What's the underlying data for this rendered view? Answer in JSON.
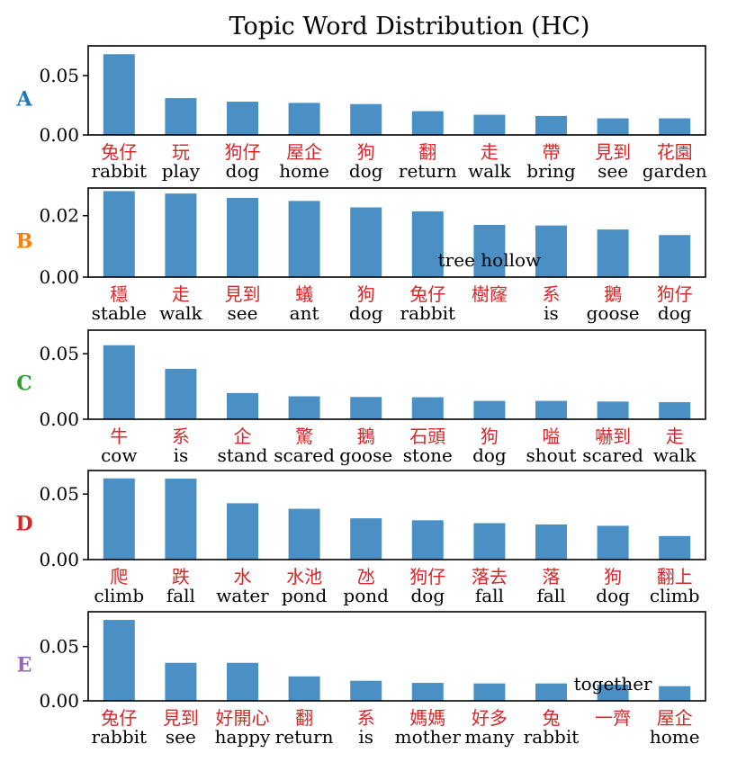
{
  "chart_data": {
    "type": "bar",
    "title": "Topic Word Distribution (HC)",
    "bar_color": "#4a90c4",
    "label_color": "#d62728",
    "panels": [
      {
        "label": "A",
        "label_color": "#1f77b4",
        "ylim": [
          0,
          0.075
        ],
        "yticks": [
          0.0,
          0.05
        ],
        "ytick_labels": [
          "0.00",
          "0.05"
        ],
        "words_zh": [
          "兔仔",
          "玩",
          "狗仔",
          "屋企",
          "狗",
          "翻",
          "走",
          "帶",
          "見到",
          "花園"
        ],
        "words_en": [
          "rabbit",
          "play",
          "dog",
          "home",
          "dog",
          "return",
          "walk",
          "bring",
          "see",
          "garden"
        ],
        "values": [
          0.068,
          0.031,
          0.028,
          0.027,
          0.026,
          0.02,
          0.017,
          0.016,
          0.014,
          0.014
        ],
        "annotation": ""
      },
      {
        "label": "B",
        "label_color": "#ff7f0e",
        "ylim": [
          0,
          0.029
        ],
        "yticks": [
          0.0,
          0.02
        ],
        "ytick_labels": [
          "0.00",
          "0.02"
        ],
        "words_zh": [
          "穩",
          "走",
          "見到",
          "蟻",
          "狗",
          "兔仔",
          "樹窿",
          "系",
          "鵝",
          "狗仔"
        ],
        "words_en": [
          "stable",
          "walk",
          "see",
          "ant",
          "dog",
          "rabbit",
          "",
          "is",
          "goose",
          "dog"
        ],
        "values": [
          0.028,
          0.0272,
          0.0258,
          0.0248,
          0.0227,
          0.0214,
          0.017,
          0.0168,
          0.0155,
          0.0137
        ],
        "annotation": "tree hollow"
      },
      {
        "label": "C",
        "label_color": "#2ca02c",
        "ylim": [
          0,
          0.068
        ],
        "yticks": [
          0.0,
          0.05
        ],
        "ytick_labels": [
          "0.00",
          "0.05"
        ],
        "words_zh": [
          "牛",
          "系",
          "企",
          "驚",
          "鵝",
          "石頭",
          "狗",
          "嗌",
          "嚇到",
          "走"
        ],
        "words_en": [
          "cow",
          "is",
          "stand",
          "scared",
          "goose",
          "stone",
          "dog",
          "shout",
          "scared",
          "walk"
        ],
        "values": [
          0.0565,
          0.0385,
          0.02,
          0.0175,
          0.017,
          0.0168,
          0.014,
          0.014,
          0.0135,
          0.013
        ],
        "annotation": ""
      },
      {
        "label": "D",
        "label_color": "#d62728",
        "ylim": [
          0,
          0.068
        ],
        "yticks": [
          0.0,
          0.05
        ],
        "ytick_labels": [
          "0.00",
          "0.05"
        ],
        "words_zh": [
          "爬",
          "跌",
          "水",
          "水池",
          "氹",
          "狗仔",
          "落去",
          "落",
          "狗",
          "翻上"
        ],
        "words_en": [
          "climb",
          "fall",
          "water",
          "pond",
          "pond",
          "dog",
          "fall",
          "fall",
          "dog",
          "climb"
        ],
        "values": [
          0.062,
          0.0618,
          0.043,
          0.0388,
          0.0315,
          0.03,
          0.0278,
          0.0268,
          0.0258,
          0.018
        ],
        "annotation": ""
      },
      {
        "label": "E",
        "label_color": "#9467bd",
        "ylim": [
          0,
          0.082
        ],
        "yticks": [
          0.0,
          0.05
        ],
        "ytick_labels": [
          "0.00",
          "0.05"
        ],
        "words_zh": [
          "兔仔",
          "見到",
          "好開心",
          "翻",
          "系",
          "媽媽",
          "好多",
          "兔",
          "一齊",
          "屋企"
        ],
        "words_en": [
          "rabbit",
          "see",
          "happy",
          "return",
          "is",
          "mother",
          "many",
          "rabbit",
          "",
          "home"
        ],
        "values": [
          0.0745,
          0.035,
          0.035,
          0.0225,
          0.0185,
          0.0165,
          0.016,
          0.016,
          0.015,
          0.0135
        ],
        "annotation": "together"
      }
    ]
  }
}
